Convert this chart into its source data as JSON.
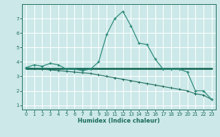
{
  "xlabel": "Humidex (Indice chaleur)",
  "background_color": "#cce8e8",
  "grid_color": "#ffffff",
  "line_color_dark": "#1a6b5a",
  "line_color_med": "#2a8a78",
  "xlim": [
    -0.5,
    23.5
  ],
  "ylim": [
    0.7,
    8.0
  ],
  "xticks": [
    0,
    1,
    2,
    3,
    4,
    5,
    6,
    7,
    8,
    9,
    10,
    11,
    12,
    13,
    14,
    15,
    16,
    17,
    18,
    19,
    20,
    21,
    22,
    23
  ],
  "yticks": [
    1,
    2,
    3,
    4,
    5,
    6,
    7
  ],
  "series_curve_x": [
    0,
    1,
    2,
    3,
    4,
    5,
    6,
    7,
    8,
    9,
    10,
    11,
    12,
    13,
    14,
    15,
    16,
    17,
    18,
    19,
    20,
    21,
    22,
    23
  ],
  "series_curve_y": [
    3.6,
    3.8,
    3.7,
    3.9,
    3.8,
    3.5,
    3.5,
    3.4,
    3.5,
    4.0,
    5.9,
    7.0,
    7.5,
    6.5,
    5.3,
    5.2,
    4.2,
    3.5,
    3.5,
    3.5,
    3.3,
    2.0,
    2.0,
    1.4
  ],
  "series_flat_x": [
    0,
    1,
    2,
    3,
    4,
    5,
    6,
    7,
    8,
    9,
    10,
    11,
    12,
    13,
    14,
    15,
    16,
    17,
    18,
    19,
    20,
    21,
    22,
    23
  ],
  "series_flat_y": [
    3.55,
    3.55,
    3.55,
    3.55,
    3.55,
    3.55,
    3.55,
    3.55,
    3.55,
    3.55,
    3.55,
    3.55,
    3.55,
    3.55,
    3.55,
    3.55,
    3.55,
    3.55,
    3.55,
    3.55,
    3.55,
    3.55,
    3.55,
    3.55
  ],
  "series_decline_x": [
    0,
    1,
    2,
    3,
    4,
    5,
    6,
    7,
    8,
    9,
    10,
    11,
    12,
    13,
    14,
    15,
    16,
    17,
    18,
    19,
    20,
    21,
    22,
    23
  ],
  "series_decline_y": [
    3.6,
    3.55,
    3.5,
    3.45,
    3.4,
    3.35,
    3.3,
    3.25,
    3.2,
    3.1,
    3.0,
    2.9,
    2.8,
    2.7,
    2.6,
    2.5,
    2.4,
    2.3,
    2.2,
    2.1,
    2.0,
    1.8,
    1.7,
    1.4
  ]
}
